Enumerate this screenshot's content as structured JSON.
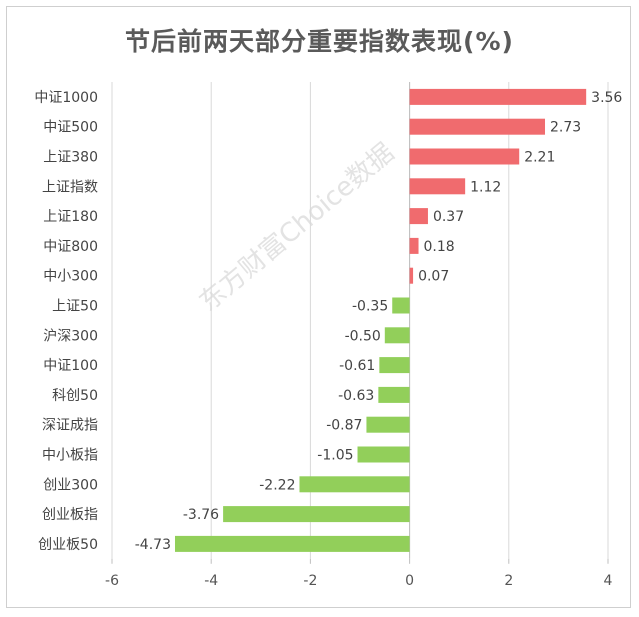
{
  "title": "节后前两天部分重要指数表现(%)",
  "watermark": "东方财富Choice数据",
  "colors": {
    "positive": "#f06b6e",
    "negative": "#92cf5a",
    "grid": "#d9d9d9"
  },
  "chart_data": {
    "type": "bar",
    "orientation": "horizontal",
    "title": "节后前两天部分重要指数表现(%)",
    "categories": [
      "中证1000",
      "中证500",
      "上证380",
      "上证指数",
      "上证180",
      "中证800",
      "中小300",
      "上证50",
      "沪深300",
      "中证100",
      "科创50",
      "深证成指",
      "中小板指",
      "创业300",
      "创业板指",
      "创业板50"
    ],
    "values": [
      3.56,
      2.73,
      2.21,
      1.12,
      0.37,
      0.18,
      0.07,
      -0.35,
      -0.5,
      -0.61,
      -0.63,
      -0.87,
      -1.05,
      -2.22,
      -3.76,
      -4.73
    ],
    "value_labels": [
      "3.56",
      "2.73",
      "2.21",
      "1.12",
      "0.37",
      "0.18",
      "0.07",
      "-0.35",
      "-0.50",
      "-0.61",
      "-0.63",
      "-0.87",
      "-1.05",
      "-2.22",
      "-3.76",
      "-4.73"
    ],
    "xlim": [
      -6,
      4
    ],
    "xticks": [
      -6,
      -4,
      -2,
      0,
      2,
      4
    ],
    "xtick_labels": [
      "-6",
      "-4",
      "-2",
      "0",
      "2",
      "4"
    ],
    "grid": true,
    "legend": "none"
  }
}
